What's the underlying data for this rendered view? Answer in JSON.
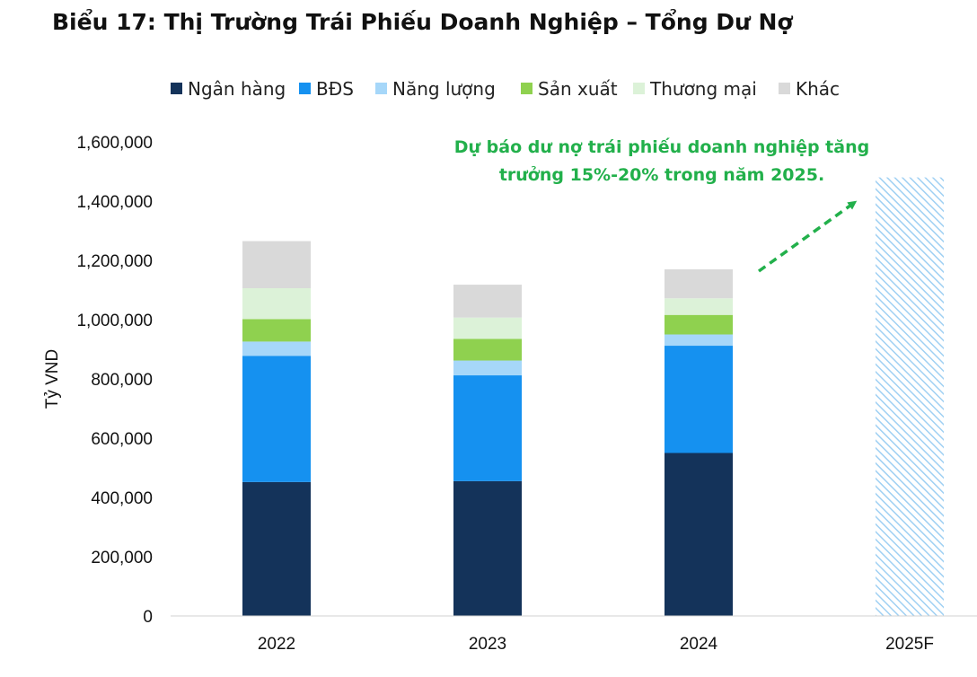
{
  "chart_data": {
    "type": "bar",
    "stacked": true,
    "title": "Biểu 17: Thị Trường Trái Phiếu Doanh Nghiệp – Tổng Dư Nợ",
    "ylabel": "Tỷ VND",
    "xlabel": "",
    "ylim": [
      0,
      1600000
    ],
    "yticks": [
      0,
      200000,
      400000,
      600000,
      800000,
      1000000,
      1200000,
      1400000,
      1600000
    ],
    "ytick_labels": [
      "0",
      "200,000",
      "400,000",
      "600,000",
      "800,000",
      "1,000,000",
      "1,200,000",
      "1,400,000",
      "1,600,000"
    ],
    "categories": [
      "2022",
      "2023",
      "2024",
      "2025F"
    ],
    "legend_position": "top",
    "grid": false,
    "series": [
      {
        "name": "Ngân hàng",
        "color": "#14335a",
        "values": [
          452000,
          455000,
          550000,
          null
        ]
      },
      {
        "name": "BĐS",
        "color": "#1591f0",
        "values": [
          426000,
          357000,
          362000,
          null
        ]
      },
      {
        "name": "Năng lượng",
        "color": "#a6d7f9",
        "values": [
          48000,
          50000,
          38000,
          null
        ]
      },
      {
        "name": "Sản xuất",
        "color": "#8fd14f",
        "values": [
          76000,
          73000,
          66000,
          null
        ]
      },
      {
        "name": "Thương mại",
        "color": "#dcf2d8",
        "values": [
          104000,
          72000,
          56000,
          null
        ]
      },
      {
        "name": "Khác",
        "color": "#d9d9d9",
        "values": [
          159000,
          111000,
          98000,
          null
        ]
      }
    ],
    "forecast": {
      "category": "2025F",
      "value": 1480000,
      "style": "hatched",
      "color": "#a6d7f9"
    },
    "annotation": {
      "lines": [
        "Dự báo dư nợ trái phiếu doanh nghiệp tăng",
        "trưởng 15%-20% trong năm 2025."
      ],
      "color": "#22b04b",
      "arrow": "dashed"
    }
  }
}
